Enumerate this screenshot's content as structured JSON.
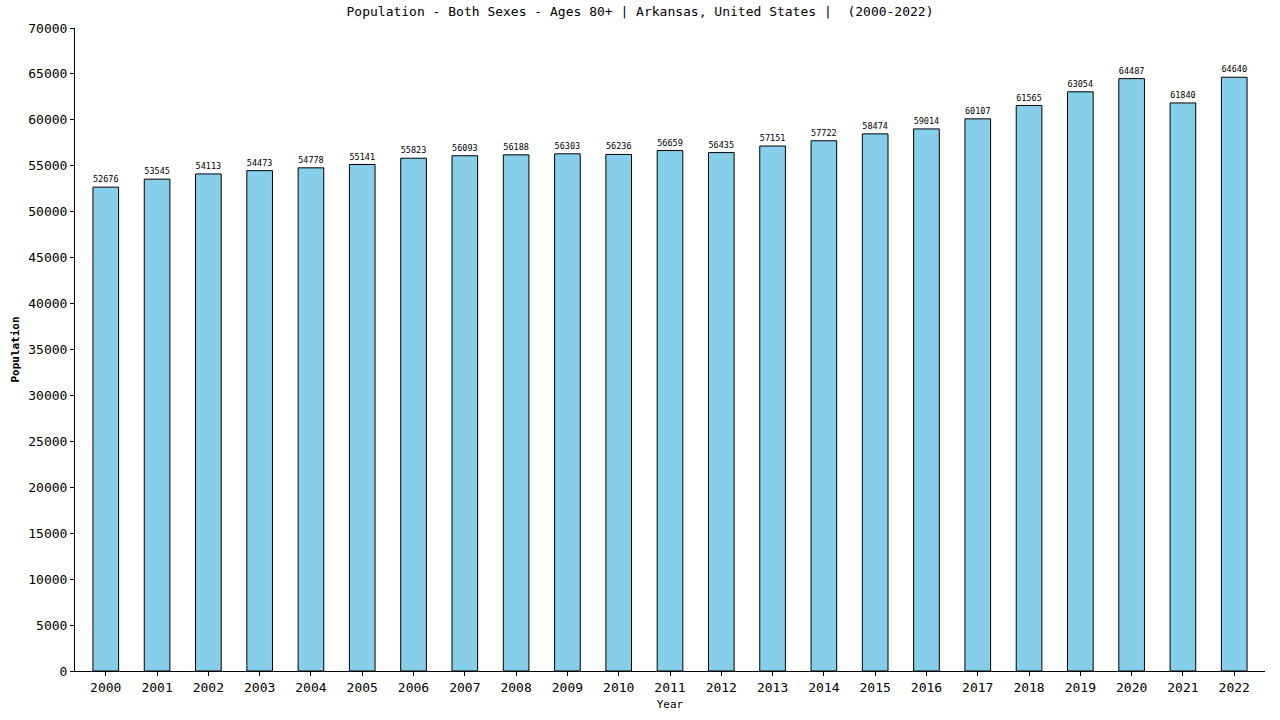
{
  "chart_data": {
    "type": "bar",
    "title": "Population - Both Sexes - Ages 80+ | Arkansas, United States |  (2000-2022)",
    "x_label": "Year",
    "y_label": "Population",
    "categories": [
      "2000",
      "2001",
      "2002",
      "2003",
      "2004",
      "2005",
      "2006",
      "2007",
      "2008",
      "2009",
      "2010",
      "2011",
      "2012",
      "2013",
      "2014",
      "2015",
      "2016",
      "2017",
      "2018",
      "2019",
      "2020",
      "2021",
      "2022"
    ],
    "values": [
      52676,
      53545,
      54113,
      54473,
      54778,
      55141,
      55823,
      56093,
      56188,
      56303,
      56236,
      56659,
      56435,
      57151,
      57722,
      58474,
      59014,
      60107,
      61565,
      63054,
      64487,
      61840,
      64640
    ],
    "color": "#87ceeb",
    "ylim": [
      0,
      70000
    ],
    "yticks": [
      0,
      5000,
      10000,
      15000,
      20000,
      25000,
      30000,
      35000,
      40000,
      45000,
      50000,
      55000,
      60000,
      65000,
      70000
    ],
    "grid": false,
    "data_labels": true
  }
}
